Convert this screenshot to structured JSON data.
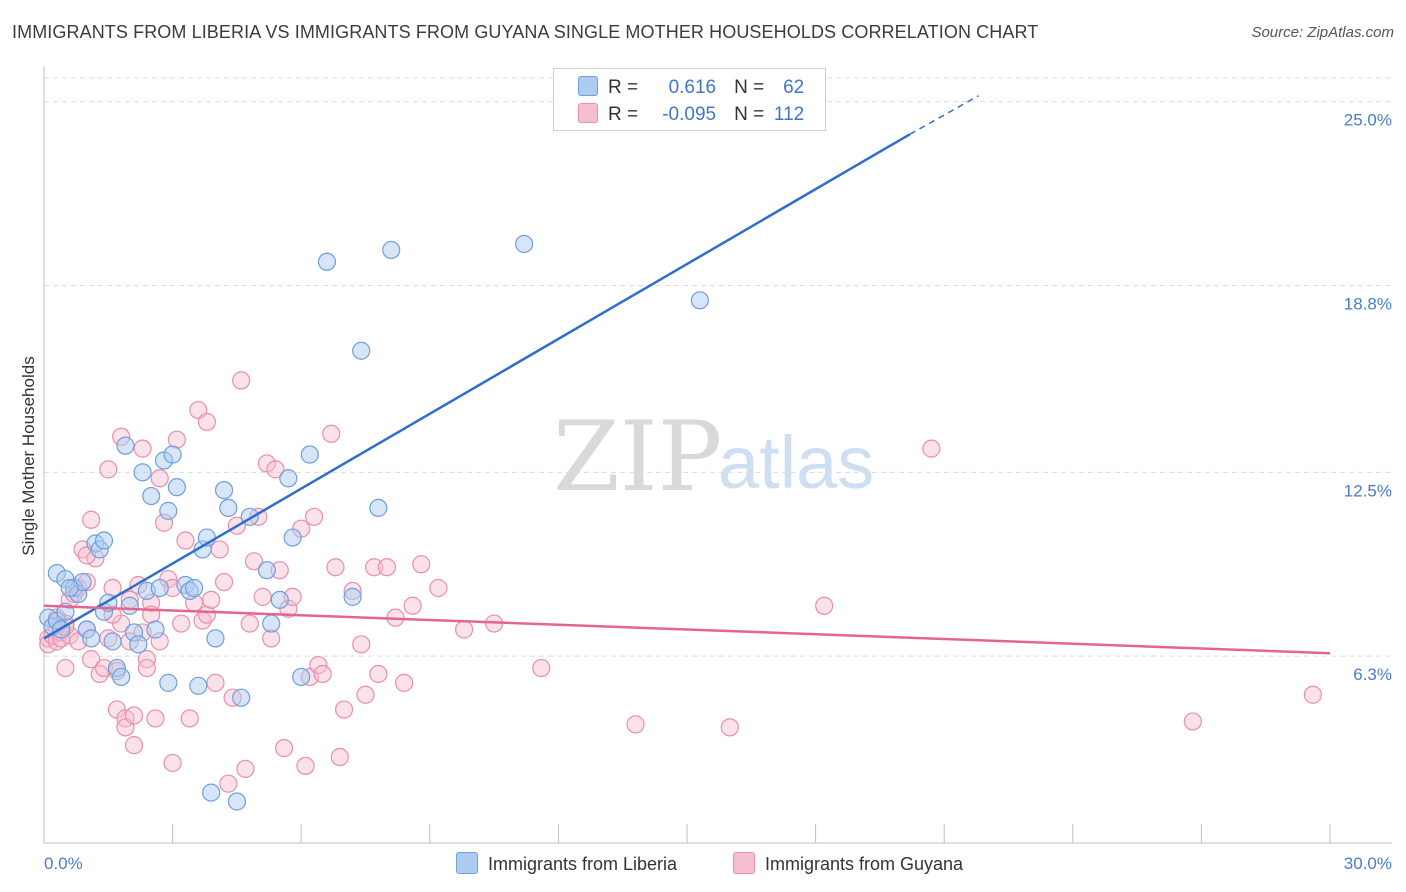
{
  "title": "IMMIGRANTS FROM LIBERIA VS IMMIGRANTS FROM GUYANA SINGLE MOTHER HOUSEHOLDS CORRELATION CHART",
  "source": "Source: ZipAtlas.com",
  "watermark": {
    "part1": "ZIP",
    "part2": "atlas"
  },
  "legend": {
    "rows": [
      {
        "r_label": "R =",
        "r_value": "0.616",
        "n_label": "N =",
        "n_value": "62"
      },
      {
        "r_label": "R =",
        "r_value": "-0.095",
        "n_label": "N =",
        "n_value": "112"
      }
    ]
  },
  "bottom_legend": {
    "liberia": "Immigrants from Liberia",
    "guyana": "Immigrants from Guyana"
  },
  "colors": {
    "liberia_fill": "#aecbf0",
    "liberia_stroke": "#6f9fdc",
    "liberia_line": "#2f6fcc",
    "guyana_fill": "#f6bfd0",
    "guyana_stroke": "#e98eab",
    "guyana_line": "#e4668f",
    "tick_text": "#4a7cc9"
  },
  "chart_data": {
    "type": "scatter",
    "title": "IMMIGRANTS FROM LIBERIA VS IMMIGRANTS FROM GUYANA SINGLE MOTHER HOUSEHOLDS CORRELATION CHART",
    "xlabel": "",
    "ylabel": "Single Mother Households",
    "xlim": [
      0,
      30
    ],
    "ylim": [
      0,
      26
    ],
    "x_tick_labels": [
      "0.0%",
      "30.0%"
    ],
    "y_ticks": [
      6.3,
      12.5,
      18.8,
      25.0
    ],
    "y_tick_labels": [
      "6.3%",
      "12.5%",
      "18.8%",
      "25.0%"
    ],
    "grid": "horizontal dashed",
    "series": [
      {
        "name": "Immigrants from Liberia",
        "r": 0.616,
        "n": 62,
        "trend": {
          "x0": 0.0,
          "y0": 6.9,
          "x1": 20.2,
          "y1": 23.9,
          "dashed_to_x": 21.8,
          "dashed_to_y": 25.2
        },
        "points": [
          [
            0.1,
            7.6
          ],
          [
            0.2,
            7.3
          ],
          [
            0.3,
            7.5
          ],
          [
            0.4,
            7.2
          ],
          [
            0.5,
            7.8
          ],
          [
            0.3,
            9.1
          ],
          [
            0.5,
            8.9
          ],
          [
            0.7,
            8.6
          ],
          [
            0.8,
            8.4
          ],
          [
            0.9,
            8.8
          ],
          [
            1.0,
            7.2
          ],
          [
            1.1,
            6.9
          ],
          [
            1.2,
            10.1
          ],
          [
            1.3,
            9.9
          ],
          [
            1.4,
            10.2
          ],
          [
            1.4,
            7.8
          ],
          [
            1.6,
            6.8
          ],
          [
            1.7,
            5.9
          ],
          [
            1.8,
            5.6
          ],
          [
            1.9,
            13.4
          ],
          [
            2.0,
            8.0
          ],
          [
            2.1,
            7.1
          ],
          [
            2.2,
            6.7
          ],
          [
            2.3,
            12.5
          ],
          [
            2.4,
            8.5
          ],
          [
            2.5,
            11.7
          ],
          [
            2.6,
            7.2
          ],
          [
            2.7,
            8.6
          ],
          [
            2.8,
            12.9
          ],
          [
            2.9,
            11.2
          ],
          [
            3.0,
            13.1
          ],
          [
            3.1,
            12.0
          ],
          [
            3.3,
            8.7
          ],
          [
            3.4,
            8.5
          ],
          [
            3.5,
            8.6
          ],
          [
            3.6,
            5.3
          ],
          [
            3.7,
            9.9
          ],
          [
            3.8,
            10.3
          ],
          [
            4.0,
            6.9
          ],
          [
            4.2,
            11.9
          ],
          [
            4.3,
            11.3
          ],
          [
            4.5,
            1.4
          ],
          [
            4.6,
            4.9
          ],
          [
            4.8,
            11.0
          ],
          [
            5.2,
            9.2
          ],
          [
            5.3,
            7.4
          ],
          [
            5.5,
            8.2
          ],
          [
            5.7,
            12.3
          ],
          [
            5.8,
            10.3
          ],
          [
            6.0,
            5.6
          ],
          [
            3.9,
            1.7
          ],
          [
            6.2,
            13.1
          ],
          [
            6.6,
            19.6
          ],
          [
            7.2,
            8.3
          ],
          [
            7.4,
            16.6
          ],
          [
            7.8,
            11.3
          ],
          [
            8.1,
            20.0
          ],
          [
            11.2,
            20.2
          ],
          [
            15.3,
            18.3
          ],
          [
            0.6,
            8.6
          ],
          [
            1.5,
            8.1
          ],
          [
            2.9,
            5.4
          ]
        ]
      },
      {
        "name": "Immigrants from Guyana",
        "r": -0.095,
        "n": 112,
        "trend": {
          "x0": 0.0,
          "y0": 8.0,
          "x1": 30.0,
          "y1": 6.4
        },
        "points": [
          [
            0.1,
            6.9
          ],
          [
            0.1,
            6.7
          ],
          [
            0.2,
            7.3
          ],
          [
            0.2,
            7.0
          ],
          [
            0.3,
            6.8
          ],
          [
            0.3,
            7.6
          ],
          [
            0.4,
            7.1
          ],
          [
            0.4,
            6.9
          ],
          [
            0.5,
            7.4
          ],
          [
            0.5,
            5.9
          ],
          [
            0.6,
            8.2
          ],
          [
            0.6,
            7.0
          ],
          [
            0.7,
            8.4
          ],
          [
            0.8,
            8.6
          ],
          [
            0.8,
            6.8
          ],
          [
            0.9,
            9.9
          ],
          [
            1.0,
            8.8
          ],
          [
            1.0,
            7.2
          ],
          [
            1.1,
            6.2
          ],
          [
            1.1,
            10.9
          ],
          [
            1.2,
            9.6
          ],
          [
            1.3,
            5.7
          ],
          [
            1.4,
            5.9
          ],
          [
            1.5,
            12.6
          ],
          [
            1.5,
            6.9
          ],
          [
            1.6,
            8.6
          ],
          [
            1.7,
            4.5
          ],
          [
            1.7,
            5.8
          ],
          [
            1.8,
            13.7
          ],
          [
            1.8,
            7.4
          ],
          [
            1.9,
            4.2
          ],
          [
            1.9,
            3.9
          ],
          [
            2.0,
            8.2
          ],
          [
            2.0,
            6.8
          ],
          [
            2.1,
            3.3
          ],
          [
            2.1,
            4.3
          ],
          [
            2.2,
            8.7
          ],
          [
            2.3,
            13.3
          ],
          [
            2.3,
            7.1
          ],
          [
            2.4,
            6.2
          ],
          [
            2.5,
            8.1
          ],
          [
            2.5,
            7.7
          ],
          [
            2.6,
            4.2
          ],
          [
            2.7,
            12.3
          ],
          [
            2.7,
            6.8
          ],
          [
            2.8,
            10.8
          ],
          [
            2.9,
            8.9
          ],
          [
            3.0,
            2.7
          ],
          [
            3.1,
            13.6
          ],
          [
            3.2,
            7.4
          ],
          [
            3.3,
            10.2
          ],
          [
            3.4,
            4.2
          ],
          [
            3.5,
            8.1
          ],
          [
            3.6,
            14.6
          ],
          [
            3.7,
            7.5
          ],
          [
            3.8,
            7.7
          ],
          [
            3.8,
            14.2
          ],
          [
            3.9,
            8.2
          ],
          [
            4.0,
            5.4
          ],
          [
            4.1,
            9.9
          ],
          [
            4.2,
            8.8
          ],
          [
            4.3,
            2.0
          ],
          [
            4.4,
            4.9
          ],
          [
            4.5,
            10.7
          ],
          [
            4.6,
            15.6
          ],
          [
            4.7,
            2.5
          ],
          [
            4.8,
            7.4
          ],
          [
            4.9,
            9.5
          ],
          [
            5.0,
            11.0
          ],
          [
            5.1,
            8.3
          ],
          [
            5.2,
            12.8
          ],
          [
            5.3,
            6.9
          ],
          [
            5.4,
            12.6
          ],
          [
            5.5,
            9.2
          ],
          [
            5.6,
            3.2
          ],
          [
            5.7,
            7.9
          ],
          [
            5.8,
            8.3
          ],
          [
            6.0,
            10.6
          ],
          [
            6.1,
            2.6
          ],
          [
            6.2,
            5.6
          ],
          [
            6.3,
            11.0
          ],
          [
            6.4,
            6.0
          ],
          [
            6.5,
            5.7
          ],
          [
            6.7,
            13.8
          ],
          [
            6.8,
            9.3
          ],
          [
            6.9,
            2.9
          ],
          [
            7.0,
            4.5
          ],
          [
            7.2,
            8.5
          ],
          [
            7.4,
            6.7
          ],
          [
            7.5,
            5.0
          ],
          [
            7.7,
            9.3
          ],
          [
            7.8,
            5.7
          ],
          [
            8.0,
            9.3
          ],
          [
            8.2,
            7.6
          ],
          [
            8.4,
            5.4
          ],
          [
            8.6,
            8.0
          ],
          [
            8.8,
            9.4
          ],
          [
            9.2,
            8.6
          ],
          [
            9.8,
            7.2
          ],
          [
            10.5,
            7.4
          ],
          [
            11.6,
            5.9
          ],
          [
            13.8,
            4.0
          ],
          [
            16.0,
            3.9
          ],
          [
            18.2,
            8.0
          ],
          [
            20.7,
            13.3
          ],
          [
            26.8,
            4.1
          ],
          [
            29.6,
            5.0
          ],
          [
            0.5,
            7.3
          ],
          [
            1.0,
            9.7
          ],
          [
            1.6,
            7.7
          ],
          [
            2.4,
            5.9
          ],
          [
            3.0,
            8.6
          ]
        ]
      }
    ]
  }
}
